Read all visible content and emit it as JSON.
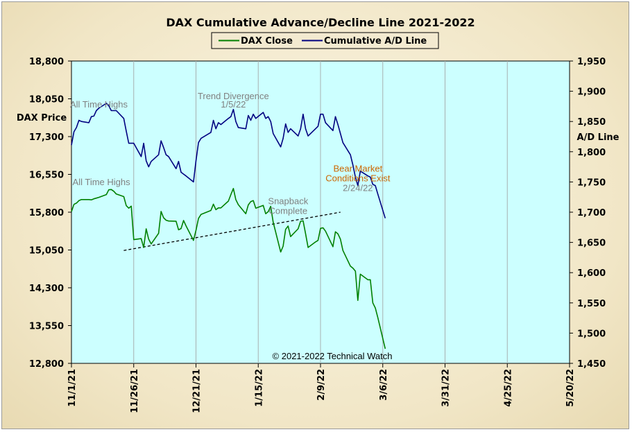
{
  "chart_data": {
    "type": "line",
    "title": "DAX Cumulative Advance/Decline Line 2021-2022",
    "ylabel_left": "DAX Price",
    "ylabel_right": "A/D Line",
    "ylim_left": [
      12800,
      18800
    ],
    "ylim_right": [
      1450,
      1950
    ],
    "left_ticks": [
      "18,800",
      "18,050",
      "17,300",
      "16,550",
      "15,800",
      "15,050",
      "14,300",
      "13,550",
      "12,800"
    ],
    "right_ticks": [
      "1,950",
      "1,900",
      "1,850",
      "1,800",
      "1,750",
      "1,700",
      "1,650",
      "1,600",
      "1,550",
      "1,500",
      "1,450"
    ],
    "x_ticks": [
      "11/1/21",
      "11/26/21",
      "12/21/21",
      "1/15/22",
      "2/9/22",
      "3/6/22",
      "3/31/22",
      "4/25/22",
      "5/20/22"
    ],
    "x_range": [
      "2021-11-01",
      "2022-05-20"
    ],
    "grid": true,
    "legend_position": "top-center",
    "plot_background": "#ccffff",
    "copyright": "© 2021-2022  Technical  Watch",
    "series": [
      {
        "name": "DAX Close",
        "axis": "left",
        "color": "#008000",
        "points": [
          [
            "2021-11-01",
            15810
          ],
          [
            "2021-11-02",
            15955
          ],
          [
            "2021-11-03",
            15980
          ],
          [
            "2021-11-04",
            16030
          ],
          [
            "2021-11-05",
            16050
          ],
          [
            "2021-11-08",
            16050
          ],
          [
            "2021-11-09",
            16045
          ],
          [
            "2021-11-10",
            16065
          ],
          [
            "2021-11-11",
            16080
          ],
          [
            "2021-11-12",
            16095
          ],
          [
            "2021-11-15",
            16150
          ],
          [
            "2021-11-16",
            16245
          ],
          [
            "2021-11-17",
            16250
          ],
          [
            "2021-11-18",
            16215
          ],
          [
            "2021-11-19",
            16160
          ],
          [
            "2021-11-22",
            16110
          ],
          [
            "2021-11-23",
            15930
          ],
          [
            "2021-11-24",
            15880
          ],
          [
            "2021-11-25",
            15920
          ],
          [
            "2021-11-26",
            15255
          ],
          [
            "2021-11-29",
            15275
          ],
          [
            "2021-11-30",
            15100
          ],
          [
            "2021-12-01",
            15470
          ],
          [
            "2021-12-02",
            15265
          ],
          [
            "2021-12-03",
            15170
          ],
          [
            "2021-12-06",
            15380
          ],
          [
            "2021-12-07",
            15815
          ],
          [
            "2021-12-08",
            15690
          ],
          [
            "2021-12-09",
            15640
          ],
          [
            "2021-12-10",
            15625
          ],
          [
            "2021-12-13",
            15620
          ],
          [
            "2021-12-14",
            15450
          ],
          [
            "2021-12-15",
            15475
          ],
          [
            "2021-12-16",
            15635
          ],
          [
            "2021-12-17",
            15530
          ],
          [
            "2021-12-20",
            15240
          ],
          [
            "2021-12-21",
            15440
          ],
          [
            "2021-12-22",
            15675
          ],
          [
            "2021-12-23",
            15755
          ],
          [
            "2021-12-27",
            15835
          ],
          [
            "2021-12-28",
            15960
          ],
          [
            "2021-12-29",
            15850
          ],
          [
            "2021-12-30",
            15885
          ],
          [
            "2021-12-31",
            15885
          ],
          [
            "2022-01-03",
            16020
          ],
          [
            "2022-01-04",
            16150
          ],
          [
            "2022-01-05",
            16270
          ],
          [
            "2022-01-06",
            16050
          ],
          [
            "2022-01-07",
            15950
          ],
          [
            "2022-01-10",
            15770
          ],
          [
            "2022-01-11",
            15945
          ],
          [
            "2022-01-12",
            16010
          ],
          [
            "2022-01-13",
            16030
          ],
          [
            "2022-01-14",
            15880
          ],
          [
            "2022-01-17",
            15935
          ],
          [
            "2022-01-18",
            15770
          ],
          [
            "2022-01-19",
            15810
          ],
          [
            "2022-01-20",
            15915
          ],
          [
            "2022-01-21",
            15600
          ],
          [
            "2022-01-24",
            15010
          ],
          [
            "2022-01-25",
            15125
          ],
          [
            "2022-01-26",
            15460
          ],
          [
            "2022-01-27",
            15525
          ],
          [
            "2022-01-28",
            15315
          ],
          [
            "2022-01-31",
            15470
          ],
          [
            "2022-02-01",
            15620
          ],
          [
            "2022-02-02",
            15630
          ],
          [
            "2022-02-03",
            15370
          ],
          [
            "2022-02-04",
            15100
          ],
          [
            "2022-02-07",
            15210
          ],
          [
            "2022-02-08",
            15240
          ],
          [
            "2022-02-09",
            15480
          ],
          [
            "2022-02-10",
            15490
          ],
          [
            "2022-02-11",
            15425
          ],
          [
            "2022-02-14",
            15115
          ],
          [
            "2022-02-15",
            15410
          ],
          [
            "2022-02-16",
            15370
          ],
          [
            "2022-02-17",
            15265
          ],
          [
            "2022-02-18",
            15040
          ],
          [
            "2022-02-21",
            14730
          ],
          [
            "2022-02-22",
            14690
          ],
          [
            "2022-02-23",
            14630
          ],
          [
            "2022-02-24",
            14050
          ],
          [
            "2022-02-25",
            14570
          ],
          [
            "2022-02-28",
            14460
          ],
          [
            "2022-03-01",
            14460
          ],
          [
            "2022-03-02",
            14000
          ],
          [
            "2022-03-03",
            13900
          ],
          [
            "2022-03-04",
            13710
          ],
          [
            "2022-03-07",
            13090
          ]
        ]
      },
      {
        "name": "Cumulative A/D Line",
        "axis": "right",
        "color": "#000080",
        "points": [
          [
            "2021-11-01",
            1811
          ],
          [
            "2021-11-02",
            1833
          ],
          [
            "2021-11-03",
            1840
          ],
          [
            "2021-11-04",
            1852
          ],
          [
            "2021-11-05",
            1850
          ],
          [
            "2021-11-08",
            1848
          ],
          [
            "2021-11-09",
            1858
          ],
          [
            "2021-11-10",
            1859
          ],
          [
            "2021-11-11",
            1868
          ],
          [
            "2021-11-12",
            1872
          ],
          [
            "2021-11-15",
            1880
          ],
          [
            "2021-11-16",
            1876
          ],
          [
            "2021-11-17",
            1868
          ],
          [
            "2021-11-18",
            1868
          ],
          [
            "2021-11-19",
            1868
          ],
          [
            "2021-11-22",
            1855
          ],
          [
            "2021-11-23",
            1834
          ],
          [
            "2021-11-24",
            1814
          ],
          [
            "2021-11-25",
            1814
          ],
          [
            "2021-11-26",
            1814
          ],
          [
            "2021-11-29",
            1792
          ],
          [
            "2021-11-30",
            1814
          ],
          [
            "2021-12-01",
            1785
          ],
          [
            "2021-12-02",
            1775
          ],
          [
            "2021-12-03",
            1784
          ],
          [
            "2021-12-06",
            1795
          ],
          [
            "2021-12-07",
            1818
          ],
          [
            "2021-12-08",
            1807
          ],
          [
            "2021-12-09",
            1795
          ],
          [
            "2021-12-10",
            1792
          ],
          [
            "2021-12-13",
            1772
          ],
          [
            "2021-12-14",
            1784
          ],
          [
            "2021-12-15",
            1766
          ],
          [
            "2021-12-16",
            1763
          ],
          [
            "2021-12-17",
            1760
          ],
          [
            "2021-12-20",
            1750
          ],
          [
            "2021-12-21",
            1785
          ],
          [
            "2021-12-22",
            1815
          ],
          [
            "2021-12-23",
            1822
          ],
          [
            "2021-12-27",
            1832
          ],
          [
            "2021-12-28",
            1852
          ],
          [
            "2021-12-29",
            1838
          ],
          [
            "2021-12-30",
            1848
          ],
          [
            "2021-12-31",
            1845
          ],
          [
            "2022-01-03",
            1855
          ],
          [
            "2022-01-04",
            1858
          ],
          [
            "2022-01-05",
            1870
          ],
          [
            "2022-01-06",
            1850
          ],
          [
            "2022-01-07",
            1840
          ],
          [
            "2022-01-10",
            1838
          ],
          [
            "2022-01-11",
            1860
          ],
          [
            "2022-01-12",
            1852
          ],
          [
            "2022-01-13",
            1862
          ],
          [
            "2022-01-14",
            1855
          ],
          [
            "2022-01-17",
            1865
          ],
          [
            "2022-01-18",
            1855
          ],
          [
            "2022-01-19",
            1858
          ],
          [
            "2022-01-20",
            1850
          ],
          [
            "2022-01-21",
            1830
          ],
          [
            "2022-01-24",
            1808
          ],
          [
            "2022-01-25",
            1822
          ],
          [
            "2022-01-26",
            1846
          ],
          [
            "2022-01-27",
            1832
          ],
          [
            "2022-01-28",
            1838
          ],
          [
            "2022-01-31",
            1826
          ],
          [
            "2022-02-01",
            1838
          ],
          [
            "2022-02-02",
            1862
          ],
          [
            "2022-02-03",
            1838
          ],
          [
            "2022-02-04",
            1826
          ],
          [
            "2022-02-07",
            1838
          ],
          [
            "2022-02-08",
            1842
          ],
          [
            "2022-02-09",
            1862
          ],
          [
            "2022-02-10",
            1862
          ],
          [
            "2022-02-11",
            1848
          ],
          [
            "2022-02-14",
            1835
          ],
          [
            "2022-02-15",
            1858
          ],
          [
            "2022-02-16",
            1845
          ],
          [
            "2022-02-17",
            1830
          ],
          [
            "2022-02-18",
            1815
          ],
          [
            "2022-02-21",
            1795
          ],
          [
            "2022-02-22",
            1778
          ],
          [
            "2022-02-23",
            1758
          ],
          [
            "2022-02-24",
            1744
          ],
          [
            "2022-02-25",
            1768
          ],
          [
            "2022-02-28",
            1760
          ],
          [
            "2022-03-01",
            1758
          ],
          [
            "2022-03-02",
            1746
          ],
          [
            "2022-03-03",
            1744
          ],
          [
            "2022-03-04",
            1730
          ],
          [
            "2022-03-07",
            1690
          ]
        ]
      }
    ],
    "trendline": {
      "axis": "left",
      "style": "dashed",
      "color": "#000000",
      "points": [
        [
          "2021-11-22",
          15040
        ],
        [
          "2022-02-17",
          15800
        ]
      ]
    },
    "annotations": [
      {
        "text": "All Time Highs",
        "color": "#808080",
        "at": [
          "2021-11-12",
          1873
        ],
        "axis": "right"
      },
      {
        "text": "Trend  Divergence",
        "color": "#808080",
        "at": [
          "2022-01-05",
          1887
        ],
        "axis": "right"
      },
      {
        "text": "1/5/22",
        "color": "#808080",
        "at": [
          "2022-01-05",
          1873
        ],
        "axis": "right"
      },
      {
        "text": "All Time Highs",
        "color": "#808080",
        "at": [
          "2021-11-13",
          16340
        ],
        "axis": "left"
      },
      {
        "text": "Bear  Market",
        "color": "#cc6600",
        "at": [
          "2022-02-24",
          1767
        ],
        "axis": "right"
      },
      {
        "text": "Conditions  Exist",
        "color": "#cc6600",
        "at": [
          "2022-02-24",
          1751
        ],
        "axis": "right"
      },
      {
        "text": "2/24/22",
        "color": "#808080",
        "at": [
          "2022-02-24",
          1735
        ],
        "axis": "right"
      },
      {
        "text": "Snapback",
        "color": "#808080",
        "at": [
          "2022-01-27",
          1713
        ],
        "axis": "right"
      },
      {
        "text": "Complete",
        "color": "#808080",
        "at": [
          "2022-01-27",
          1697
        ],
        "axis": "right"
      }
    ]
  }
}
